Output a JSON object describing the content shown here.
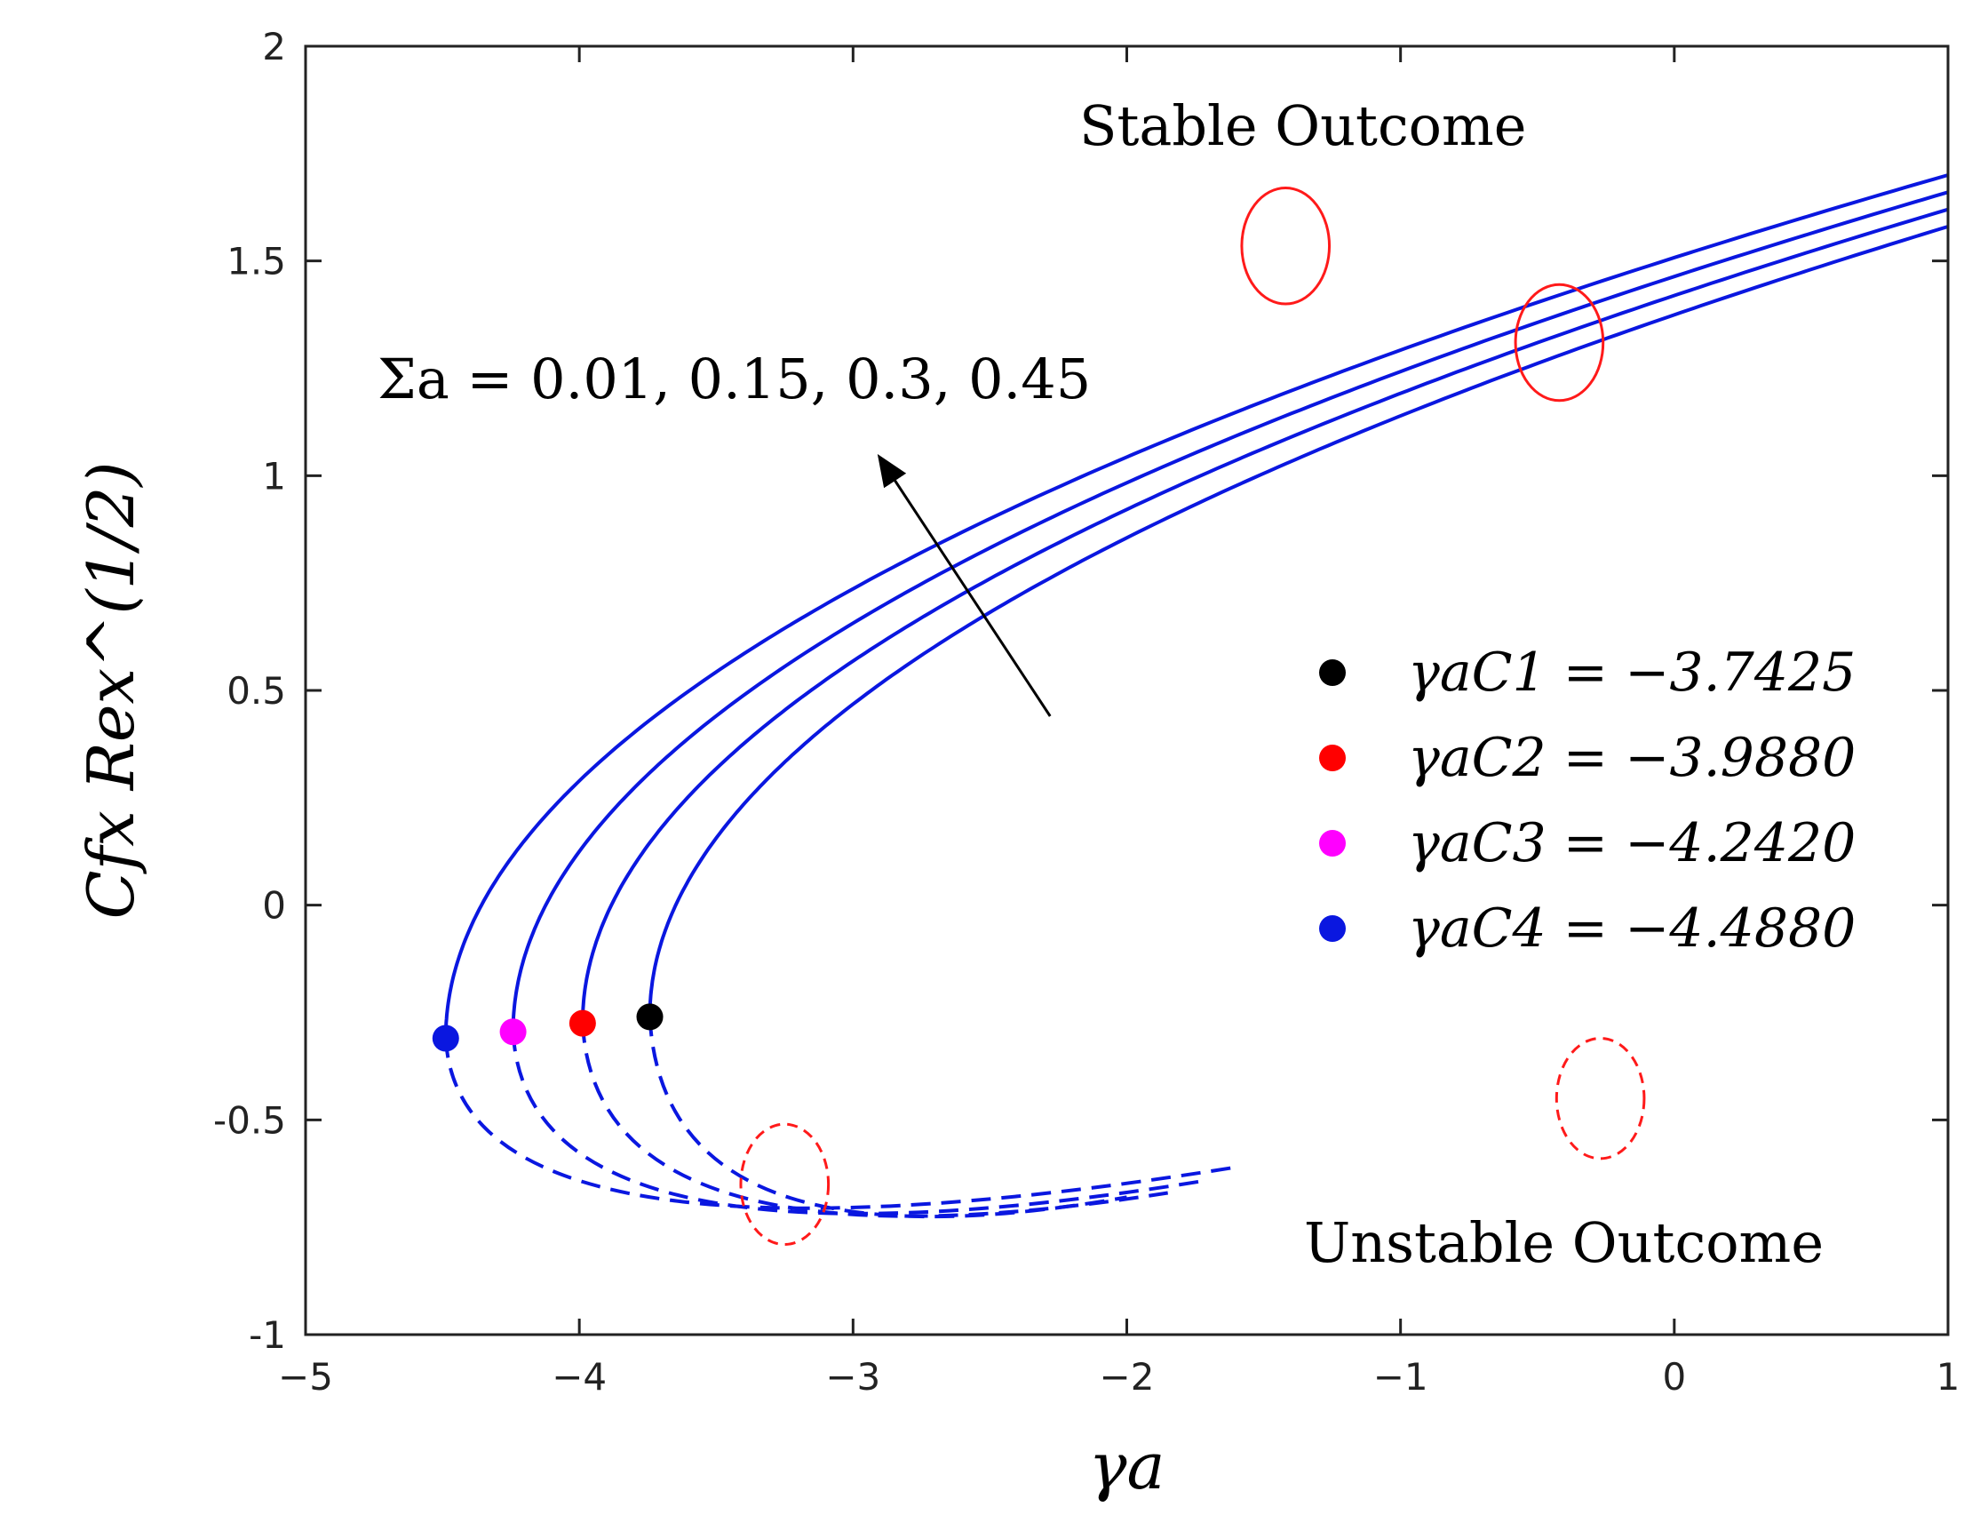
{
  "chart_data": {
    "type": "line",
    "xlabel": "γa",
    "ylabel": "Cfx Rex^(1/2)",
    "xlim": [
      -5,
      1
    ],
    "ylim": [
      -1,
      2
    ],
    "x_ticks": [
      -5,
      -4,
      -3,
      -2,
      -1,
      0,
      1
    ],
    "x_tick_labels": [
      "−5",
      "−4",
      "−3",
      "−2",
      "−1",
      "0",
      "1"
    ],
    "y_ticks": [
      -1,
      -0.5,
      0,
      0.5,
      1,
      1.5,
      2
    ],
    "y_tick_labels": [
      "-1",
      "-0.5",
      "0",
      "0.5",
      "1",
      "1.5",
      "2"
    ],
    "series": [
      {
        "name": "Σa = 0.45",
        "critical_x": -4.488,
        "critical_y": -0.31,
        "upper_branch_y_at_x1": 1.7,
        "lower_branch_min_y": -0.72,
        "lower_branch_end": [
          -1.6,
          -0.61
        ],
        "color": "#0a17e0"
      },
      {
        "name": "Σa = 0.3",
        "critical_x": -4.242,
        "critical_y": -0.295,
        "upper_branch_y_at_x1": 1.66,
        "lower_branch_min_y": -0.72,
        "lower_branch_end": [
          -1.7,
          -0.64
        ],
        "color": "#0a17e0"
      },
      {
        "name": "Σa = 0.15",
        "critical_x": -3.988,
        "critical_y": -0.275,
        "upper_branch_y_at_x1": 1.62,
        "lower_branch_min_y": -0.7,
        "lower_branch_end": [
          -1.85,
          -0.67
        ],
        "color": "#0a17e0"
      },
      {
        "name": "Σa = 0.01",
        "critical_x": -3.7425,
        "critical_y": -0.26,
        "upper_branch_y_at_x1": 1.58,
        "lower_branch_min_y": -0.69,
        "lower_branch_end": [
          -2.0,
          -0.68
        ],
        "color": "#0a17e0"
      }
    ],
    "legend": {
      "placement": "center-right",
      "entries": [
        {
          "label": "γaC1 = −3.7425",
          "color": "#000000",
          "x": -3.7425,
          "y": -0.26
        },
        {
          "label": "γaC2 = −3.9880",
          "color": "#ff0000",
          "x": -3.988,
          "y": -0.275
        },
        {
          "label": "γaC3 = −4.2420",
          "color": "#ff00ff",
          "x": -4.242,
          "y": -0.295
        },
        {
          "label": "γaC4 = −4.4880",
          "color": "#0a17e0",
          "x": -4.488,
          "y": -0.31
        }
      ]
    },
    "annotations": {
      "sigma_label": "Σa = 0.01, 0.15, 0.3, 0.45",
      "stable_label": "Stable Outcome",
      "unstable_label": "Unstable Outcome",
      "arrow_from": [
        -2.28,
        0.44
      ],
      "arrow_to": [
        -2.9,
        1.04
      ],
      "stable_ellipse_free": {
        "cx": -1.42,
        "cy": 1.535,
        "rx": 0.16,
        "ry": 0.135
      },
      "stable_ellipse_curves": {
        "cx": -0.42,
        "cy": 1.31,
        "rx": 0.16,
        "ry": 0.135
      },
      "unstable_ellipse_free": {
        "cx": -0.27,
        "cy": -0.45,
        "rx": 0.16,
        "ry": 0.14
      },
      "unstable_ellipse_curves": {
        "cx": -3.25,
        "cy": -0.65,
        "rx": 0.16,
        "ry": 0.14
      }
    }
  }
}
